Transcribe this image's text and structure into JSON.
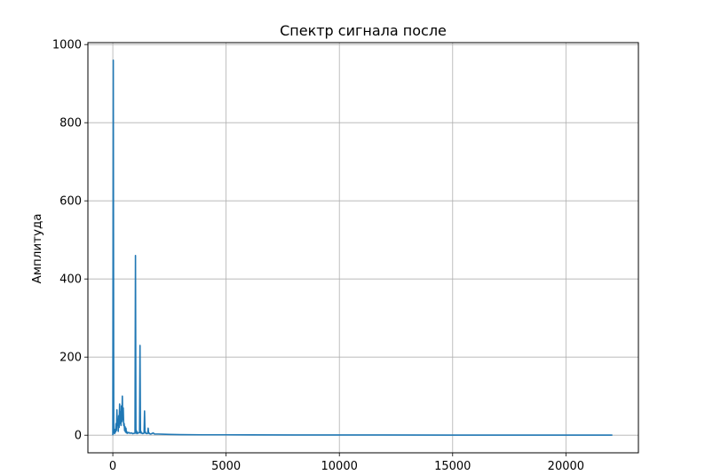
{
  "chart_data": {
    "type": "line",
    "title": "Спектр сигнала после",
    "xlabel": "",
    "ylabel": "Амплитуда",
    "xlim": [
      -1100,
      23200
    ],
    "ylim": [
      -45,
      1005
    ],
    "xticks": [
      0,
      5000,
      10000,
      15000,
      20000
    ],
    "yticks": [
      0,
      200,
      400,
      600,
      800,
      1000
    ],
    "grid": true,
    "legend": null,
    "series": [
      {
        "color": "#1f77b4",
        "x": [
          0,
          20,
          40,
          60,
          80,
          100,
          120,
          140,
          160,
          180,
          200,
          220,
          240,
          260,
          280,
          300,
          320,
          340,
          360,
          380,
          400,
          420,
          440,
          460,
          480,
          500,
          520,
          540,
          560,
          580,
          600,
          620,
          640,
          700,
          760,
          820,
          880,
          940,
          980,
          1000,
          1020,
          1040,
          1060,
          1080,
          1100,
          1140,
          1180,
          1200,
          1220,
          1240,
          1260,
          1280,
          1320,
          1360,
          1380,
          1400,
          1420,
          1440,
          1460,
          1500,
          1540,
          1560,
          1580,
          1600,
          1620,
          1660,
          1720,
          1780,
          1800,
          1820,
          1840,
          1900,
          2000,
          2200,
          2500,
          3000,
          4000,
          5000,
          6000,
          8000,
          10000,
          12000,
          15000,
          18000,
          20000,
          22050
        ],
        "y": [
          0,
          960,
          6,
          12,
          4,
          15,
          8,
          30,
          12,
          65,
          25,
          40,
          10,
          50,
          20,
          80,
          30,
          60,
          25,
          75,
          35,
          100,
          40,
          70,
          25,
          30,
          12,
          22,
          8,
          18,
          6,
          9,
          5,
          7,
          5,
          6,
          4,
          5,
          5,
          460,
          6,
          12,
          4,
          8,
          5,
          6,
          7,
          230,
          6,
          10,
          5,
          6,
          4,
          5,
          7,
          62,
          6,
          8,
          5,
          4,
          5,
          18,
          5,
          6,
          4,
          3,
          4,
          6,
          5,
          4,
          3,
          3,
          3,
          2.5,
          2,
          1.5,
          1,
          1,
          0.8,
          0.6,
          0.5,
          0.5,
          0.4,
          0.4,
          0.3,
          0.2
        ]
      }
    ]
  }
}
